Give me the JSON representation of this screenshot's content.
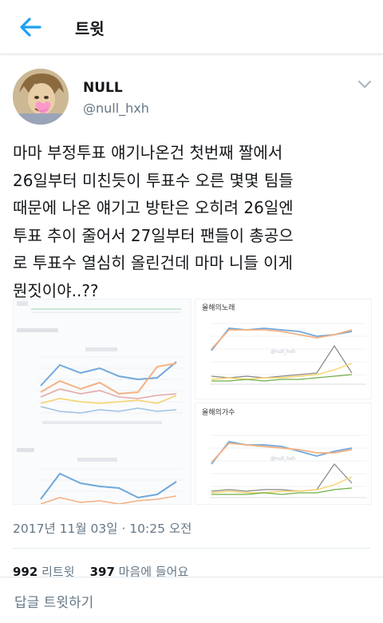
{
  "header": {
    "title": "트윗",
    "back_icon": "arrow-left-icon"
  },
  "author": {
    "name": "NULL",
    "handle": "@null_hxh"
  },
  "tweet": {
    "lines": [
      "마마 부정투표 얘기나온건 첫번째 짤에서",
      "26일부터 미친듯이 투표수 오른 몇몇 팀들",
      "때문에 나온 얘기고 방탄은 오히려 26일엔",
      "투표 추이 줄어서 27일부터 팬들이 총공으",
      "로 투표수 열심히 올린건데 마마 니들 이게",
      "뭔짓이야..??"
    ]
  },
  "media": {
    "image2_title": "올해의노래",
    "image3_title": "올해의가수",
    "watermark": "@null_hxh"
  },
  "meta": {
    "timestamp": "2017년 11월 03일 · 10:25 오전"
  },
  "stats": {
    "retweets": "992",
    "retweets_label": "리트윗",
    "likes": "397",
    "likes_label": "마음에 들어요"
  },
  "reply": {
    "placeholder": "답글 트윗하기"
  },
  "colors": {
    "accent": "#1da1f2",
    "secondary_text": "#657786",
    "divider": "#e1e8ed"
  }
}
